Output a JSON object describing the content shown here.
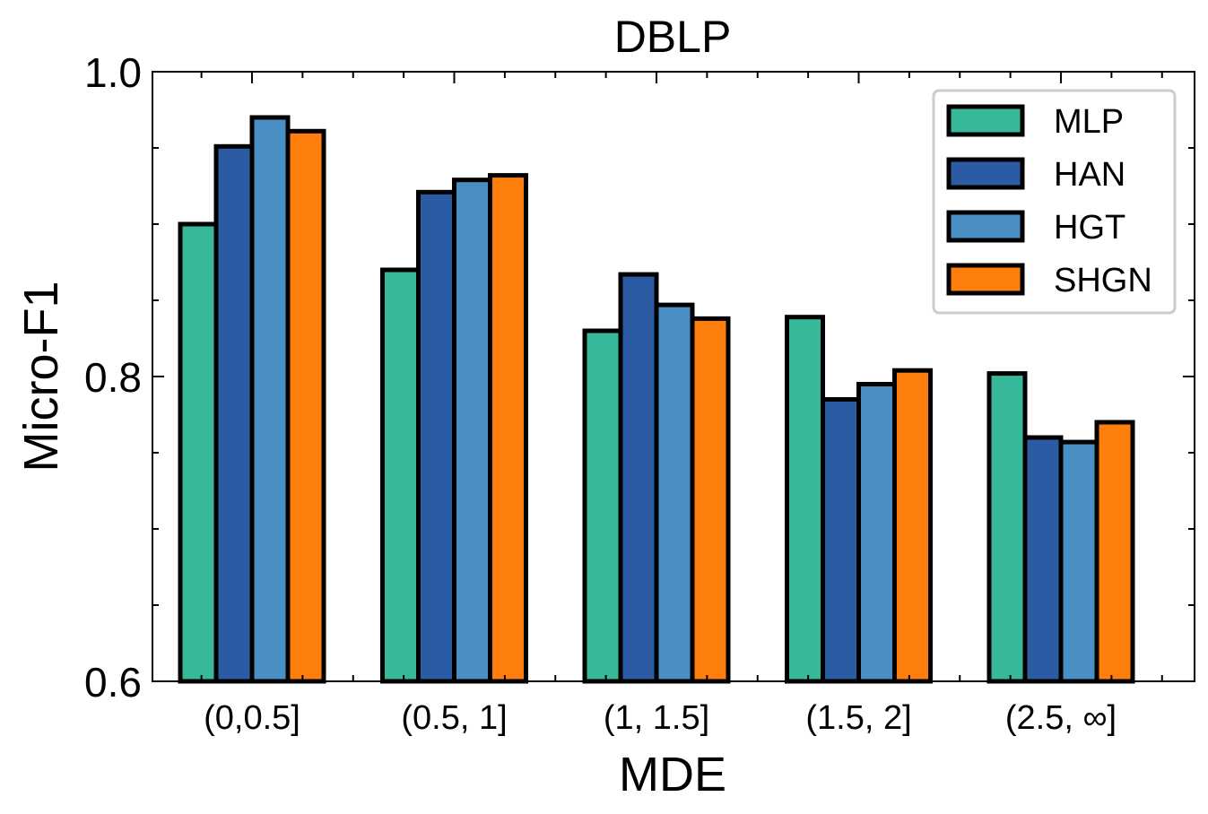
{
  "chart_data": {
    "type": "bar",
    "title": "DBLP",
    "xlabel": "MDE",
    "ylabel": "Micro-F1",
    "categories": [
      "(0,0.5]",
      "(0.5, 1]",
      "(1, 1.5]",
      "(1.5, 2]",
      "(2.5, ∞]"
    ],
    "ylim": [
      0.6,
      1.0
    ],
    "yticks": [
      0.6,
      0.8,
      1.0
    ],
    "ytick_labels": [
      "0.6",
      "0.8",
      "1.0"
    ],
    "grid": false,
    "legend_position": "top-right",
    "series": [
      {
        "name": "MLP",
        "color": "#37b89b",
        "values": [
          0.9,
          0.87,
          0.83,
          0.839,
          0.802
        ]
      },
      {
        "name": "HAN",
        "color": "#2b5ba2",
        "values": [
          0.951,
          0.921,
          0.867,
          0.785,
          0.76
        ]
      },
      {
        "name": "HGT",
        "color": "#4a8fc3",
        "values": [
          0.97,
          0.929,
          0.847,
          0.795,
          0.757
        ]
      },
      {
        "name": "SHGN",
        "color": "#ff7f0e",
        "values": [
          0.961,
          0.932,
          0.838,
          0.804,
          0.77
        ]
      }
    ]
  }
}
